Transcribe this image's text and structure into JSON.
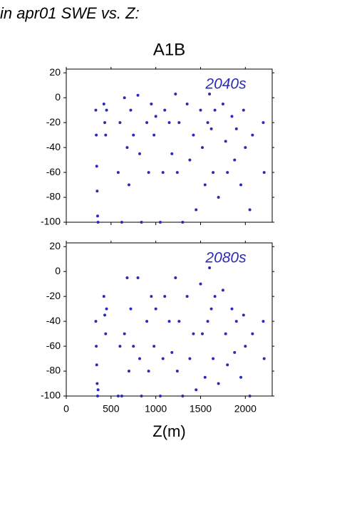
{
  "title": "in apr01 SWE vs. Z:",
  "chart_data": [
    {
      "type": "scatter",
      "title": "A1B",
      "annotation": "2040s",
      "color": "#2b2bb8",
      "show_xtick_labels": false,
      "xlim": [
        0,
        2300
      ],
      "ylim": [
        -100,
        23
      ],
      "xticks": [
        0,
        500,
        1000,
        1500,
        2000
      ],
      "yticks": [
        20,
        0,
        -20,
        -40,
        -60,
        -80,
        -100
      ],
      "x": [
        330,
        335,
        340,
        345,
        350,
        355,
        420,
        430,
        440,
        450,
        580,
        600,
        620,
        650,
        680,
        700,
        720,
        750,
        800,
        820,
        840,
        900,
        920,
        950,
        980,
        1000,
        1050,
        1080,
        1100,
        1150,
        1180,
        1220,
        1240,
        1260,
        1300,
        1350,
        1380,
        1420,
        1450,
        1500,
        1520,
        1550,
        1580,
        1600,
        1620,
        1640,
        1660,
        1700,
        1750,
        1780,
        1800,
        1850,
        1880,
        1900,
        1950,
        1980,
        2000,
        2050,
        2080,
        2200,
        2210
      ],
      "y": [
        -10,
        -30,
        -55,
        -75,
        -95,
        -100,
        -5,
        -20,
        -30,
        -10,
        -60,
        -20,
        -100,
        0,
        -40,
        -70,
        -10,
        -30,
        2,
        -45,
        -100,
        -20,
        -60,
        -5,
        -30,
        -15,
        -100,
        -60,
        -10,
        -20,
        -45,
        3,
        -60,
        -20,
        -100,
        -5,
        -50,
        -30,
        -90,
        -10,
        -40,
        -70,
        -20,
        3,
        -25,
        -60,
        -10,
        -80,
        -5,
        -35,
        -60,
        -15,
        -50,
        -25,
        -70,
        -10,
        -40,
        -90,
        -30,
        -20,
        -60
      ]
    },
    {
      "type": "scatter",
      "annotation": "2080s",
      "xlabel": "Z(m)",
      "color": "#2b2bb8",
      "show_xtick_labels": true,
      "xlim": [
        0,
        2300
      ],
      "ylim": [
        -100,
        23
      ],
      "xticks": [
        0,
        500,
        1000,
        1500,
        2000
      ],
      "yticks": [
        20,
        0,
        -20,
        -40,
        -60,
        -80,
        -100
      ],
      "x": [
        330,
        335,
        340,
        345,
        350,
        355,
        420,
        430,
        440,
        450,
        580,
        600,
        620,
        650,
        680,
        700,
        720,
        750,
        800,
        820,
        840,
        900,
        920,
        950,
        980,
        1000,
        1050,
        1080,
        1100,
        1150,
        1180,
        1220,
        1240,
        1260,
        1300,
        1350,
        1380,
        1420,
        1450,
        1500,
        1520,
        1550,
        1580,
        1600,
        1620,
        1640,
        1660,
        1700,
        1750,
        1780,
        1800,
        1850,
        1880,
        1900,
        1950,
        1980,
        2000,
        2050,
        2080,
        2200,
        2210
      ],
      "y": [
        -40,
        -60,
        -75,
        -90,
        -100,
        -95,
        -20,
        -35,
        -50,
        -30,
        -100,
        -60,
        -100,
        -50,
        -5,
        -80,
        -30,
        -60,
        -5,
        -70,
        -100,
        -40,
        -80,
        -20,
        -60,
        -30,
        -100,
        -70,
        -20,
        -40,
        -65,
        -5,
        -80,
        -40,
        -100,
        -20,
        -70,
        -50,
        -95,
        -10,
        -50,
        -85,
        -40,
        3,
        -30,
        -70,
        -20,
        -90,
        -15,
        -50,
        -75,
        -30,
        -65,
        -40,
        -85,
        -35,
        -60,
        -100,
        -50,
        -40,
        -70
      ]
    }
  ]
}
